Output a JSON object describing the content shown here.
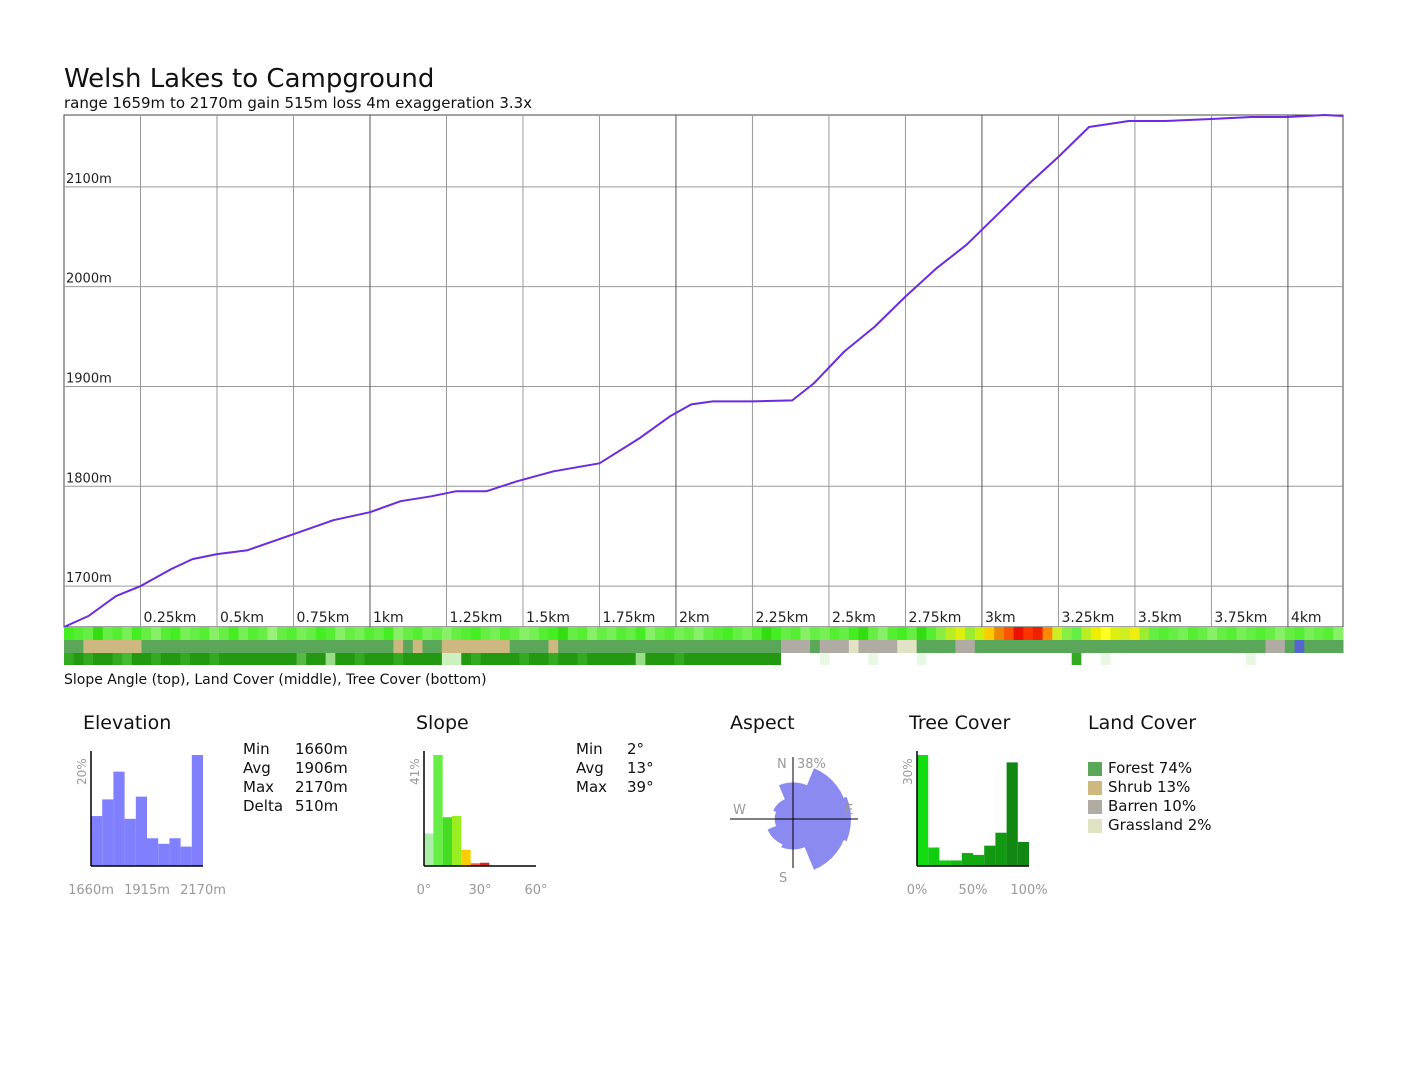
{
  "title": "Welsh Lakes to Campground",
  "subtitle": "range 1659m to 2170m  gain 515m  loss 4m  exaggeration 3.3x",
  "strip_caption": "Slope Angle (top), Land Cover (middle), Tree Cover (bottom)",
  "colors": {
    "profile_line": "#6a2be2",
    "histogram_elevation": "#8080ff",
    "aspect_rose": "#8a8af0",
    "forest": "#5aa75a",
    "shrub": "#cdb880",
    "barren": "#b0aca4",
    "grassland": "#e2e2c4",
    "grid": "#999999"
  },
  "chart_data": [
    {
      "type": "line",
      "name": "elevation-profile",
      "xlabel": "",
      "ylabel": "",
      "xlim": [
        0,
        4.18
      ],
      "ylim": [
        1660,
        2170
      ],
      "x_ticks": [
        0.25,
        0.5,
        0.75,
        1,
        1.25,
        1.5,
        1.75,
        2,
        2.25,
        2.5,
        2.75,
        3,
        3.25,
        3.5,
        3.75,
        4
      ],
      "x_tick_labels": [
        "0.25km",
        "0.5km",
        "0.75km",
        "1km",
        "1.25km",
        "1.5km",
        "1.75km",
        "2km",
        "2.25km",
        "2.5km",
        "2.75km",
        "3km",
        "3.25km",
        "3.5km",
        "3.75km",
        "4km"
      ],
      "y_ticks": [
        1700,
        1800,
        1900,
        2000,
        2100
      ],
      "y_tick_labels": [
        "1700m",
        "1800m",
        "1900m",
        "2000m",
        "2100m"
      ],
      "grid": true,
      "x": [
        0,
        0.08,
        0.17,
        0.25,
        0.35,
        0.42,
        0.5,
        0.6,
        0.75,
        0.88,
        1.0,
        1.1,
        1.2,
        1.28,
        1.38,
        1.48,
        1.6,
        1.75,
        1.88,
        1.98,
        2.05,
        2.12,
        2.25,
        2.38,
        2.45,
        2.55,
        2.65,
        2.75,
        2.85,
        2.95,
        3.05,
        3.15,
        3.25,
        3.35,
        3.48,
        3.6,
        3.75,
        3.88,
        4.0,
        4.12,
        4.18
      ],
      "y": [
        1659,
        1670,
        1690,
        1700,
        1717,
        1727,
        1732,
        1736,
        1752,
        1766,
        1774,
        1785,
        1790,
        1795,
        1795,
        1805,
        1815,
        1823,
        1848,
        1870,
        1882,
        1885,
        1885,
        1886,
        1903,
        1935,
        1960,
        1990,
        2018,
        2042,
        2072,
        2102,
        2130,
        2160,
        2166,
        2166,
        2168,
        2170,
        2170,
        2172,
        2171
      ],
      "slope_strip": [
        "#44ee22",
        "#55ee33",
        "#66ee44",
        "#33dd11",
        "#66ee44",
        "#55ee33",
        "#77f055",
        "#44ee22",
        "#66ee44",
        "#88f066",
        "#55ee33",
        "#44ee22",
        "#77f055",
        "#66ee44",
        "#55ee33",
        "#88f066",
        "#66ee44",
        "#44ee22",
        "#77f055",
        "#55ee33",
        "#66ee44",
        "#99f277",
        "#66ee44",
        "#55ee33",
        "#77f055",
        "#66ee44",
        "#44ee22",
        "#55ee33",
        "#88f066",
        "#66ee44",
        "#77f055",
        "#55ee33",
        "#66ee44",
        "#44ee22",
        "#88f066",
        "#66ee44",
        "#55ee33",
        "#77f055",
        "#66ee44",
        "#88f066",
        "#66ee44",
        "#55ee33",
        "#44ee22",
        "#66ee44",
        "#77f055",
        "#55ee33",
        "#66ee44",
        "#88f066",
        "#77f055",
        "#55ee33",
        "#44ee22",
        "#33dd11",
        "#66ee44",
        "#55ee33",
        "#88f066",
        "#66ee44",
        "#77f055",
        "#55ee33",
        "#66ee44",
        "#44ee22",
        "#88f066",
        "#66ee44",
        "#55ee33",
        "#77f055",
        "#66ee44",
        "#88f066",
        "#66ee44",
        "#55ee33",
        "#44ee22",
        "#66ee44",
        "#77f055",
        "#55ee33",
        "#33dd11",
        "#44ee22",
        "#66ee44",
        "#55ee33",
        "#88f066",
        "#66ee44",
        "#77f055",
        "#55ee33",
        "#66ee44",
        "#44ee22",
        "#33dd11",
        "#66ee44",
        "#88f066",
        "#55ee33",
        "#44ee22",
        "#66ee44",
        "#33dd11",
        "#55ee33",
        "#88ee44",
        "#bbee22",
        "#ddee11",
        "#99ee33",
        "#ccee11",
        "#ffcc00",
        "#ee8800",
        "#ff5500",
        "#ee1100",
        "#ff3300",
        "#ee2200",
        "#ff8800",
        "#ccee22",
        "#88ee44",
        "#66ee44",
        "#bbee22",
        "#eeee00",
        "#ffff22",
        "#ddee11",
        "#ccee22",
        "#eeee11",
        "#99ee33",
        "#66ee44",
        "#55ee33",
        "#66ee44",
        "#77f055",
        "#55ee33",
        "#66ee44",
        "#88f066",
        "#66ee44",
        "#55ee33",
        "#77f055",
        "#66ee44",
        "#55ee33",
        "#66ee44",
        "#88f066",
        "#66ee44",
        "#55ee33",
        "#77f055",
        "#66ee44",
        "#55ee33",
        "#88f066"
      ],
      "landcover_strip": [
        "F",
        "F",
        "S",
        "S",
        "S",
        "S",
        "S",
        "S",
        "F",
        "F",
        "F",
        "F",
        "F",
        "F",
        "F",
        "F",
        "F",
        "F",
        "F",
        "F",
        "F",
        "F",
        "F",
        "F",
        "F",
        "F",
        "F",
        "F",
        "F",
        "F",
        "F",
        "F",
        "F",
        "F",
        "S",
        "F",
        "S",
        "F",
        "F",
        "S",
        "S",
        "S",
        "S",
        "S",
        "S",
        "S",
        "F",
        "F",
        "F",
        "F",
        "S",
        "F",
        "F",
        "F",
        "F",
        "F",
        "F",
        "F",
        "F",
        "F",
        "F",
        "F",
        "F",
        "F",
        "F",
        "F",
        "F",
        "F",
        "F",
        "F",
        "F",
        "F",
        "F",
        "F",
        "B",
        "B",
        "B",
        "F",
        "B",
        "B",
        "B",
        "G",
        "B",
        "B",
        "B",
        "B",
        "G",
        "G",
        "F",
        "F",
        "F",
        "F",
        "B",
        "B",
        "F",
        "F",
        "F",
        "F",
        "F",
        "F",
        "F",
        "F",
        "F",
        "F",
        "F",
        "F",
        "F",
        "F",
        "F",
        "F",
        "F",
        "F",
        "F",
        "F",
        "F",
        "F",
        "F",
        "F",
        "F",
        "F",
        "F",
        "F",
        "F",
        "F",
        "B",
        "B",
        "F",
        "W",
        "F",
        "F",
        "F",
        "F"
      ],
      "treecover_strip": [
        "#33aa22",
        "#229911",
        "#33aa22",
        "#229911",
        "#229911",
        "#33aa22",
        "#44bb33",
        "#229911",
        "#229911",
        "#33aa22",
        "#229911",
        "#229911",
        "#33aa22",
        "#229911",
        "#229911",
        "#33aa22",
        "#229911",
        "#229911",
        "#229911",
        "#229911",
        "#229911",
        "#229911",
        "#229911",
        "#229911",
        "#55bb44",
        "#229911",
        "#229911",
        "#99dd88",
        "#229911",
        "#229911",
        "#33aa22",
        "#229911",
        "#229911",
        "#229911",
        "#33aa22",
        "#229911",
        "#229911",
        "#229911",
        "#229911",
        "#ccf0c0",
        "#ccf0c0",
        "#229911",
        "#33aa22",
        "#229911",
        "#229911",
        "#229911",
        "#229911",
        "#33aa22",
        "#229911",
        "#229911",
        "#33aa22",
        "#229911",
        "#229911",
        "#33aa22",
        "#229911",
        "#229911",
        "#229911",
        "#229911",
        "#229911",
        "#99dd88",
        "#229911",
        "#229911",
        "#229911",
        "#33aa22",
        "#229911",
        "#229911",
        "#229911",
        "#229911",
        "#229911",
        "#229911",
        "#229911",
        "#229911",
        "#229911",
        "#229911",
        "#ffffff",
        "#ffffff",
        "#ffffff",
        "#ffffff",
        "#e8f8e4",
        "#ffffff",
        "#ffffff",
        "#ffffff",
        "#ffffff",
        "#e8f8e4",
        "#ffffff",
        "#ffffff",
        "#ffffff",
        "#ffffff",
        "#e8f8e4",
        "#ffffff",
        "#ffffff",
        "#ffffff",
        "#ffffff",
        "#ffffff",
        "#ffffff",
        "#ffffff",
        "#ffffff",
        "#ffffff",
        "#ffffff",
        "#ffffff",
        "#ffffff",
        "#ffffff",
        "#ffffff",
        "#ffffff",
        "#33aa22",
        "#ffffff",
        "#ffffff",
        "#e8f8e4",
        "#ffffff",
        "#ffffff",
        "#ffffff",
        "#ffffff",
        "#ffffff",
        "#ffffff",
        "#ffffff",
        "#ffffff",
        "#ffffff",
        "#ffffff",
        "#ffffff",
        "#ffffff",
        "#ffffff",
        "#ffffff",
        "#e8f8e4",
        "#ffffff",
        "#ffffff",
        "#ffffff",
        "#ffffff",
        "#ffffff",
        "#ffffff",
        "#ffffff",
        "#ffffff",
        "#ffffff",
        "#ffffff"
      ]
    },
    {
      "type": "bar",
      "name": "elevation-histogram",
      "title": "Elevation",
      "categories": [
        "b1",
        "b2",
        "b3",
        "b4",
        "b5",
        "b6",
        "b7",
        "b8",
        "b9",
        "b10"
      ],
      "values": [
        9,
        12,
        17,
        8.5,
        12.5,
        5,
        4,
        5,
        3.5,
        20
      ],
      "ymax": 20,
      "ylabel": "20%",
      "x_tick_labels": [
        "1660m",
        "1915m",
        "2170m"
      ]
    },
    {
      "type": "bar",
      "name": "slope-histogram",
      "title": "Slope",
      "categories": [
        "0-5",
        "5-10",
        "10-15",
        "15-20",
        "20-25",
        "25-30",
        "30-35",
        "35-40",
        "40-45",
        "45-50",
        "50-55",
        "55-60"
      ],
      "values": [
        12,
        41,
        18,
        18.5,
        6,
        1,
        1.2,
        0,
        0,
        0,
        0,
        0
      ],
      "colors": [
        "#aaeeaa",
        "#66ee44",
        "#44dd22",
        "#99ee22",
        "#ffcc00",
        "#ff5533",
        "#dd2222",
        "#cc0000",
        "#aa0000",
        "#880000",
        "#660000",
        "#440000"
      ],
      "ymax": 41,
      "ylabel": "41%",
      "x_tick_labels": [
        "0°",
        "30°",
        "60°"
      ]
    },
    {
      "type": "area",
      "name": "aspect-rose",
      "title": "Aspect",
      "directions": [
        "N",
        "NE",
        "E",
        "SE",
        "S",
        "SW",
        "W",
        "NW"
      ],
      "values": [
        24,
        36,
        38,
        36,
        20,
        18,
        12,
        14
      ],
      "rmax": 38,
      "max_label": "38%",
      "labels": {
        "n": "N",
        "w": "W",
        "e": "E",
        "s": "S"
      }
    },
    {
      "type": "bar",
      "name": "treecover-histogram",
      "title": "Tree Cover",
      "categories": [
        "0-10",
        "10-20",
        "20-30",
        "30-40",
        "40-50",
        "50-60",
        "60-70",
        "70-80",
        "80-90",
        "90-100"
      ],
      "values": [
        30,
        5,
        1.5,
        1.5,
        3.5,
        3,
        5.5,
        9,
        28,
        6.5
      ],
      "colors": [
        "#11dd11",
        "#11cc11",
        "#11cc11",
        "#11bb11",
        "#11aa11",
        "#11aa11",
        "#119911",
        "#119911",
        "#118811",
        "#118811"
      ],
      "ymax": 30,
      "ylabel": "30%",
      "x_tick_labels": [
        "0%",
        "50%",
        "100%"
      ]
    }
  ],
  "elevation_stats": [
    {
      "label": "Min",
      "value": "1660m"
    },
    {
      "label": "Avg",
      "value": "1906m"
    },
    {
      "label": "Max",
      "value": "2170m"
    },
    {
      "label": "Delta",
      "value": "510m"
    }
  ],
  "slope_stats": [
    {
      "label": "Min",
      "value": "2°"
    },
    {
      "label": "Avg",
      "value": "13°"
    },
    {
      "label": "Max",
      "value": "39°"
    }
  ],
  "land_cover": {
    "title": "Land Cover",
    "items": [
      {
        "label": "Forest 74%",
        "color": "#5aa75a"
      },
      {
        "label": "Shrub 13%",
        "color": "#cdb880"
      },
      {
        "label": "Barren 10%",
        "color": "#b0aca4"
      },
      {
        "label": "Grassland 2%",
        "color": "#e2e2c4"
      }
    ]
  }
}
